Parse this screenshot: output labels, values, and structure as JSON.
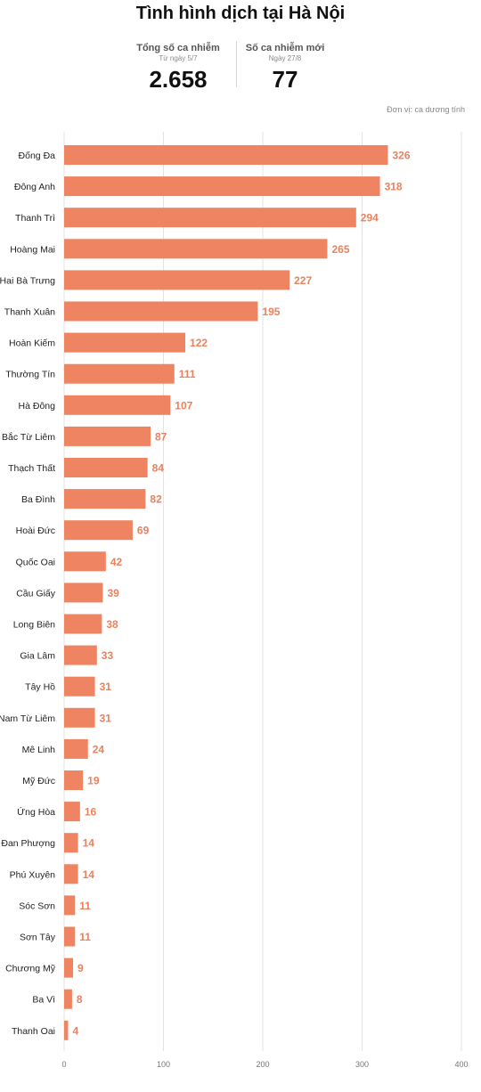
{
  "header": {
    "title": "Tình hình dịch tại Hà Nội",
    "total_label": "Tổng số ca nhiễm",
    "total_sub": "Từ ngày 5/7",
    "total_value": "2.658",
    "new_label": "Số ca nhiễm mới",
    "new_sub": "Ngày 27/8",
    "new_value": "77",
    "unit_note": "Đơn vị: ca dương tính"
  },
  "colors": {
    "bar": "#ee8461",
    "value_label": "#e8825f",
    "grid": "#e3e3e3"
  },
  "chart_data": {
    "type": "bar",
    "orientation": "horizontal",
    "categories": [
      "Đống Đa",
      "Đông Anh",
      "Thanh Trì",
      "Hoàng Mai",
      "Hai Bà Trưng",
      "Thanh Xuân",
      "Hoàn Kiếm",
      "Thường Tín",
      "Hà Đông",
      "Bắc Từ Liêm",
      "Thạch Thất",
      "Ba Đình",
      "Hoài Đức",
      "Quốc Oai",
      "Cầu Giấy",
      "Long Biên",
      "Gia Lâm",
      "Tây Hồ",
      "Nam Từ Liêm",
      "Mê Linh",
      "Mỹ Đức",
      "Ứng Hòa",
      "Đan Phượng",
      "Phú Xuyên",
      "Sóc Sơn",
      "Sơn Tây",
      "Chương Mỹ",
      "Ba Vì",
      "Thanh Oai"
    ],
    "values": [
      326,
      318,
      294,
      265,
      227,
      195,
      122,
      111,
      107,
      87,
      84,
      82,
      69,
      42,
      39,
      38,
      33,
      31,
      31,
      24,
      19,
      16,
      14,
      14,
      11,
      11,
      9,
      8,
      4
    ],
    "xlim": [
      0,
      400
    ],
    "xticks": [
      0,
      100,
      200,
      300,
      400
    ],
    "grid": true,
    "title": "",
    "xlabel": "",
    "ylabel": ""
  }
}
